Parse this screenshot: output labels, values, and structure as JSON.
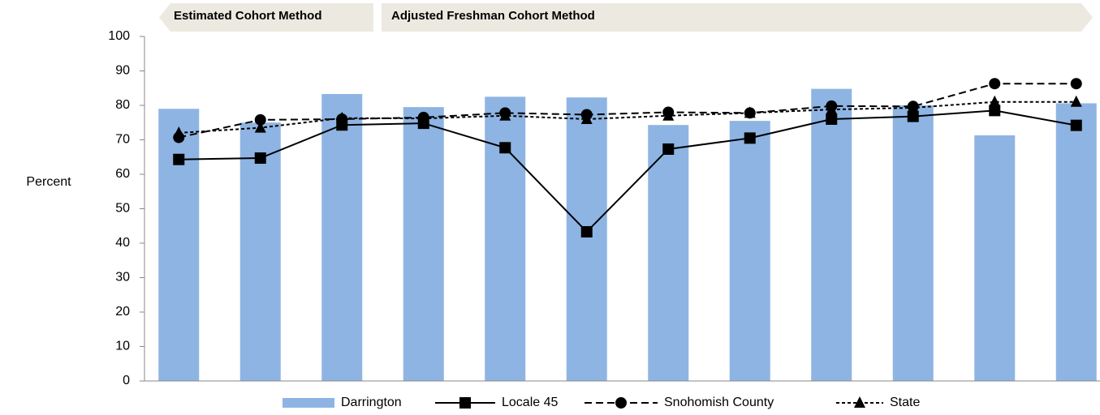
{
  "chart_data": {
    "type": "bar",
    "annotations": [
      "Estimated Cohort Method",
      "Adjusted Freshman Cohort Method"
    ],
    "y_label": "Percent",
    "categories": [
      null,
      null,
      null,
      null,
      null,
      null,
      null,
      null,
      null,
      null,
      null,
      null
    ],
    "series": [
      {
        "name": "Darrington",
        "type": "bar",
        "color": "#8eb4e3",
        "values": [
          79,
          75,
          83.3,
          79.5,
          82.5,
          82.3,
          74.3,
          75.5,
          84.8,
          80,
          71.3,
          80.6
        ]
      },
      {
        "name": "Locale 45",
        "type": "line",
        "color": "#000000",
        "line_style": "solid",
        "marker": "square",
        "values": [
          64.3,
          64.7,
          74.3,
          74.8,
          67.7,
          43.3,
          67.3,
          70.5,
          76,
          76.8,
          78.5,
          74.2
        ]
      },
      {
        "name": "Snohomish County",
        "type": "line",
        "color": "#000000",
        "line_style": "dashed",
        "marker": "circle",
        "values": [
          70.7,
          75.8,
          76,
          76.5,
          77.8,
          77.3,
          78,
          77.8,
          79.8,
          79.7,
          86.3,
          86.3
        ]
      },
      {
        "name": "State",
        "type": "line",
        "color": "#000000",
        "line_style": "dotted",
        "marker": "triangle",
        "values": [
          72,
          73.5,
          76.3,
          76.2,
          77,
          76,
          77,
          77.8,
          78.8,
          79.3,
          81,
          81
        ]
      }
    ],
    "ylim": [
      0,
      100
    ],
    "yticks": [
      0,
      10,
      20,
      30,
      40,
      50,
      60,
      70,
      80,
      90,
      100
    ],
    "legend": "bottom"
  }
}
